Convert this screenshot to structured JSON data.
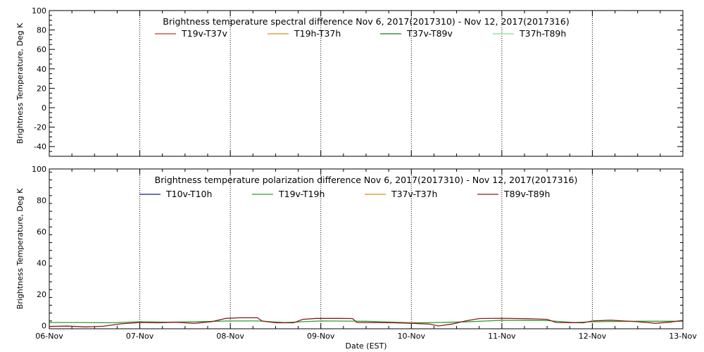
{
  "chart_data": [
    {
      "type": "line",
      "title": "Brightness temperature spectral difference     Nov  6, 2017(2017310) - Nov 12, 2017(2017316)",
      "xlabel": "",
      "ylabel": "Brightness Temperature, Deg K",
      "ylim": [
        -50,
        100
      ],
      "yticks": [
        -40,
        -20,
        0,
        20,
        40,
        60,
        80,
        100
      ],
      "xlim": [
        0,
        7
      ],
      "xticks": [
        "06-Nov",
        "07-Nov",
        "08-Nov",
        "09-Nov",
        "10-Nov",
        "11-Nov",
        "12-Nov",
        "13-Nov"
      ],
      "show_xtick_labels": false,
      "grid": "vertical-dotted",
      "legend_placement": "top",
      "series": [
        {
          "name": "T19v-T37v",
          "color": "#c0392b",
          "points": []
        },
        {
          "name": "T19h-T37h",
          "color": "#e08a1e",
          "points": []
        },
        {
          "name": "T37v-T89v",
          "color": "#1f7a1f",
          "points": []
        },
        {
          "name": "T37h-T89h",
          "color": "#7fe07f",
          "points": []
        }
      ]
    },
    {
      "type": "line",
      "title": "Brightness temperature polarization difference     Nov  6, 2017(2017310) - Nov 12, 2017(2017316)",
      "xlabel": "Date (EST)",
      "ylabel": "Brightness Temperature, Deg K",
      "ylim": [
        -2,
        100
      ],
      "yticks": [
        0,
        20,
        40,
        60,
        80,
        100
      ],
      "xlim": [
        0,
        7
      ],
      "xticks": [
        "06-Nov",
        "07-Nov",
        "08-Nov",
        "09-Nov",
        "10-Nov",
        "11-Nov",
        "12-Nov",
        "13-Nov"
      ],
      "show_xtick_labels": true,
      "grid": "vertical-dotted",
      "legend_placement": "top",
      "series": [
        {
          "name": "T10v-T10h",
          "color": "#1a1a8c",
          "points": []
        },
        {
          "name": "T19v-T19h",
          "color": "#2ca02c",
          "points": [
            [
              0,
              2
            ],
            [
              0.3,
              2
            ],
            [
              0.7,
              1.8
            ],
            [
              1,
              2.5
            ],
            [
              1.3,
              2.2
            ],
            [
              1.7,
              2.6
            ],
            [
              2,
              3
            ],
            [
              2.3,
              3
            ],
            [
              2.6,
              2
            ],
            [
              3,
              3
            ],
            [
              3.5,
              2.8
            ],
            [
              4,
              1.8
            ],
            [
              4.3,
              2
            ],
            [
              4.6,
              2.4
            ],
            [
              5,
              3.4
            ],
            [
              5.5,
              3.2
            ],
            [
              5.8,
              2
            ],
            [
              6,
              2.5
            ],
            [
              6.5,
              2.8
            ],
            [
              7,
              2.8
            ]
          ]
        },
        {
          "name": "T37v-T37h",
          "color": "#e08a1e",
          "points": []
        },
        {
          "name": "T89v-T89h",
          "color": "#8b1a1a",
          "points": [
            [
              0,
              -0.5
            ],
            [
              0.2,
              -0.3
            ],
            [
              0.4,
              -0.8
            ],
            [
              0.6,
              -0.4
            ],
            [
              0.8,
              1.2
            ],
            [
              1,
              2
            ],
            [
              1.2,
              1.8
            ],
            [
              1.4,
              2.2
            ],
            [
              1.6,
              1.4
            ],
            [
              1.8,
              2.6
            ],
            [
              1.95,
              4.6
            ],
            [
              2.1,
              5
            ],
            [
              2.3,
              5
            ],
            [
              2.35,
              3
            ],
            [
              2.5,
              1.8
            ],
            [
              2.7,
              1.8
            ],
            [
              2.8,
              4
            ],
            [
              2.95,
              4.6
            ],
            [
              3.2,
              4.6
            ],
            [
              3.35,
              4.5
            ],
            [
              3.4,
              2
            ],
            [
              3.8,
              1.8
            ],
            [
              4,
              1.5
            ],
            [
              4.2,
              1
            ],
            [
              4.3,
              -0.2
            ],
            [
              4.45,
              1
            ],
            [
              4.6,
              3
            ],
            [
              4.75,
              4.5
            ],
            [
              5,
              4.7
            ],
            [
              5.3,
              4.4
            ],
            [
              5.5,
              4
            ],
            [
              5.6,
              2
            ],
            [
              5.9,
              1.8
            ],
            [
              6,
              3
            ],
            [
              6.2,
              3.5
            ],
            [
              6.5,
              2.5
            ],
            [
              6.7,
              1.5
            ],
            [
              6.85,
              2.2
            ],
            [
              7,
              3.3
            ]
          ]
        }
      ]
    }
  ]
}
